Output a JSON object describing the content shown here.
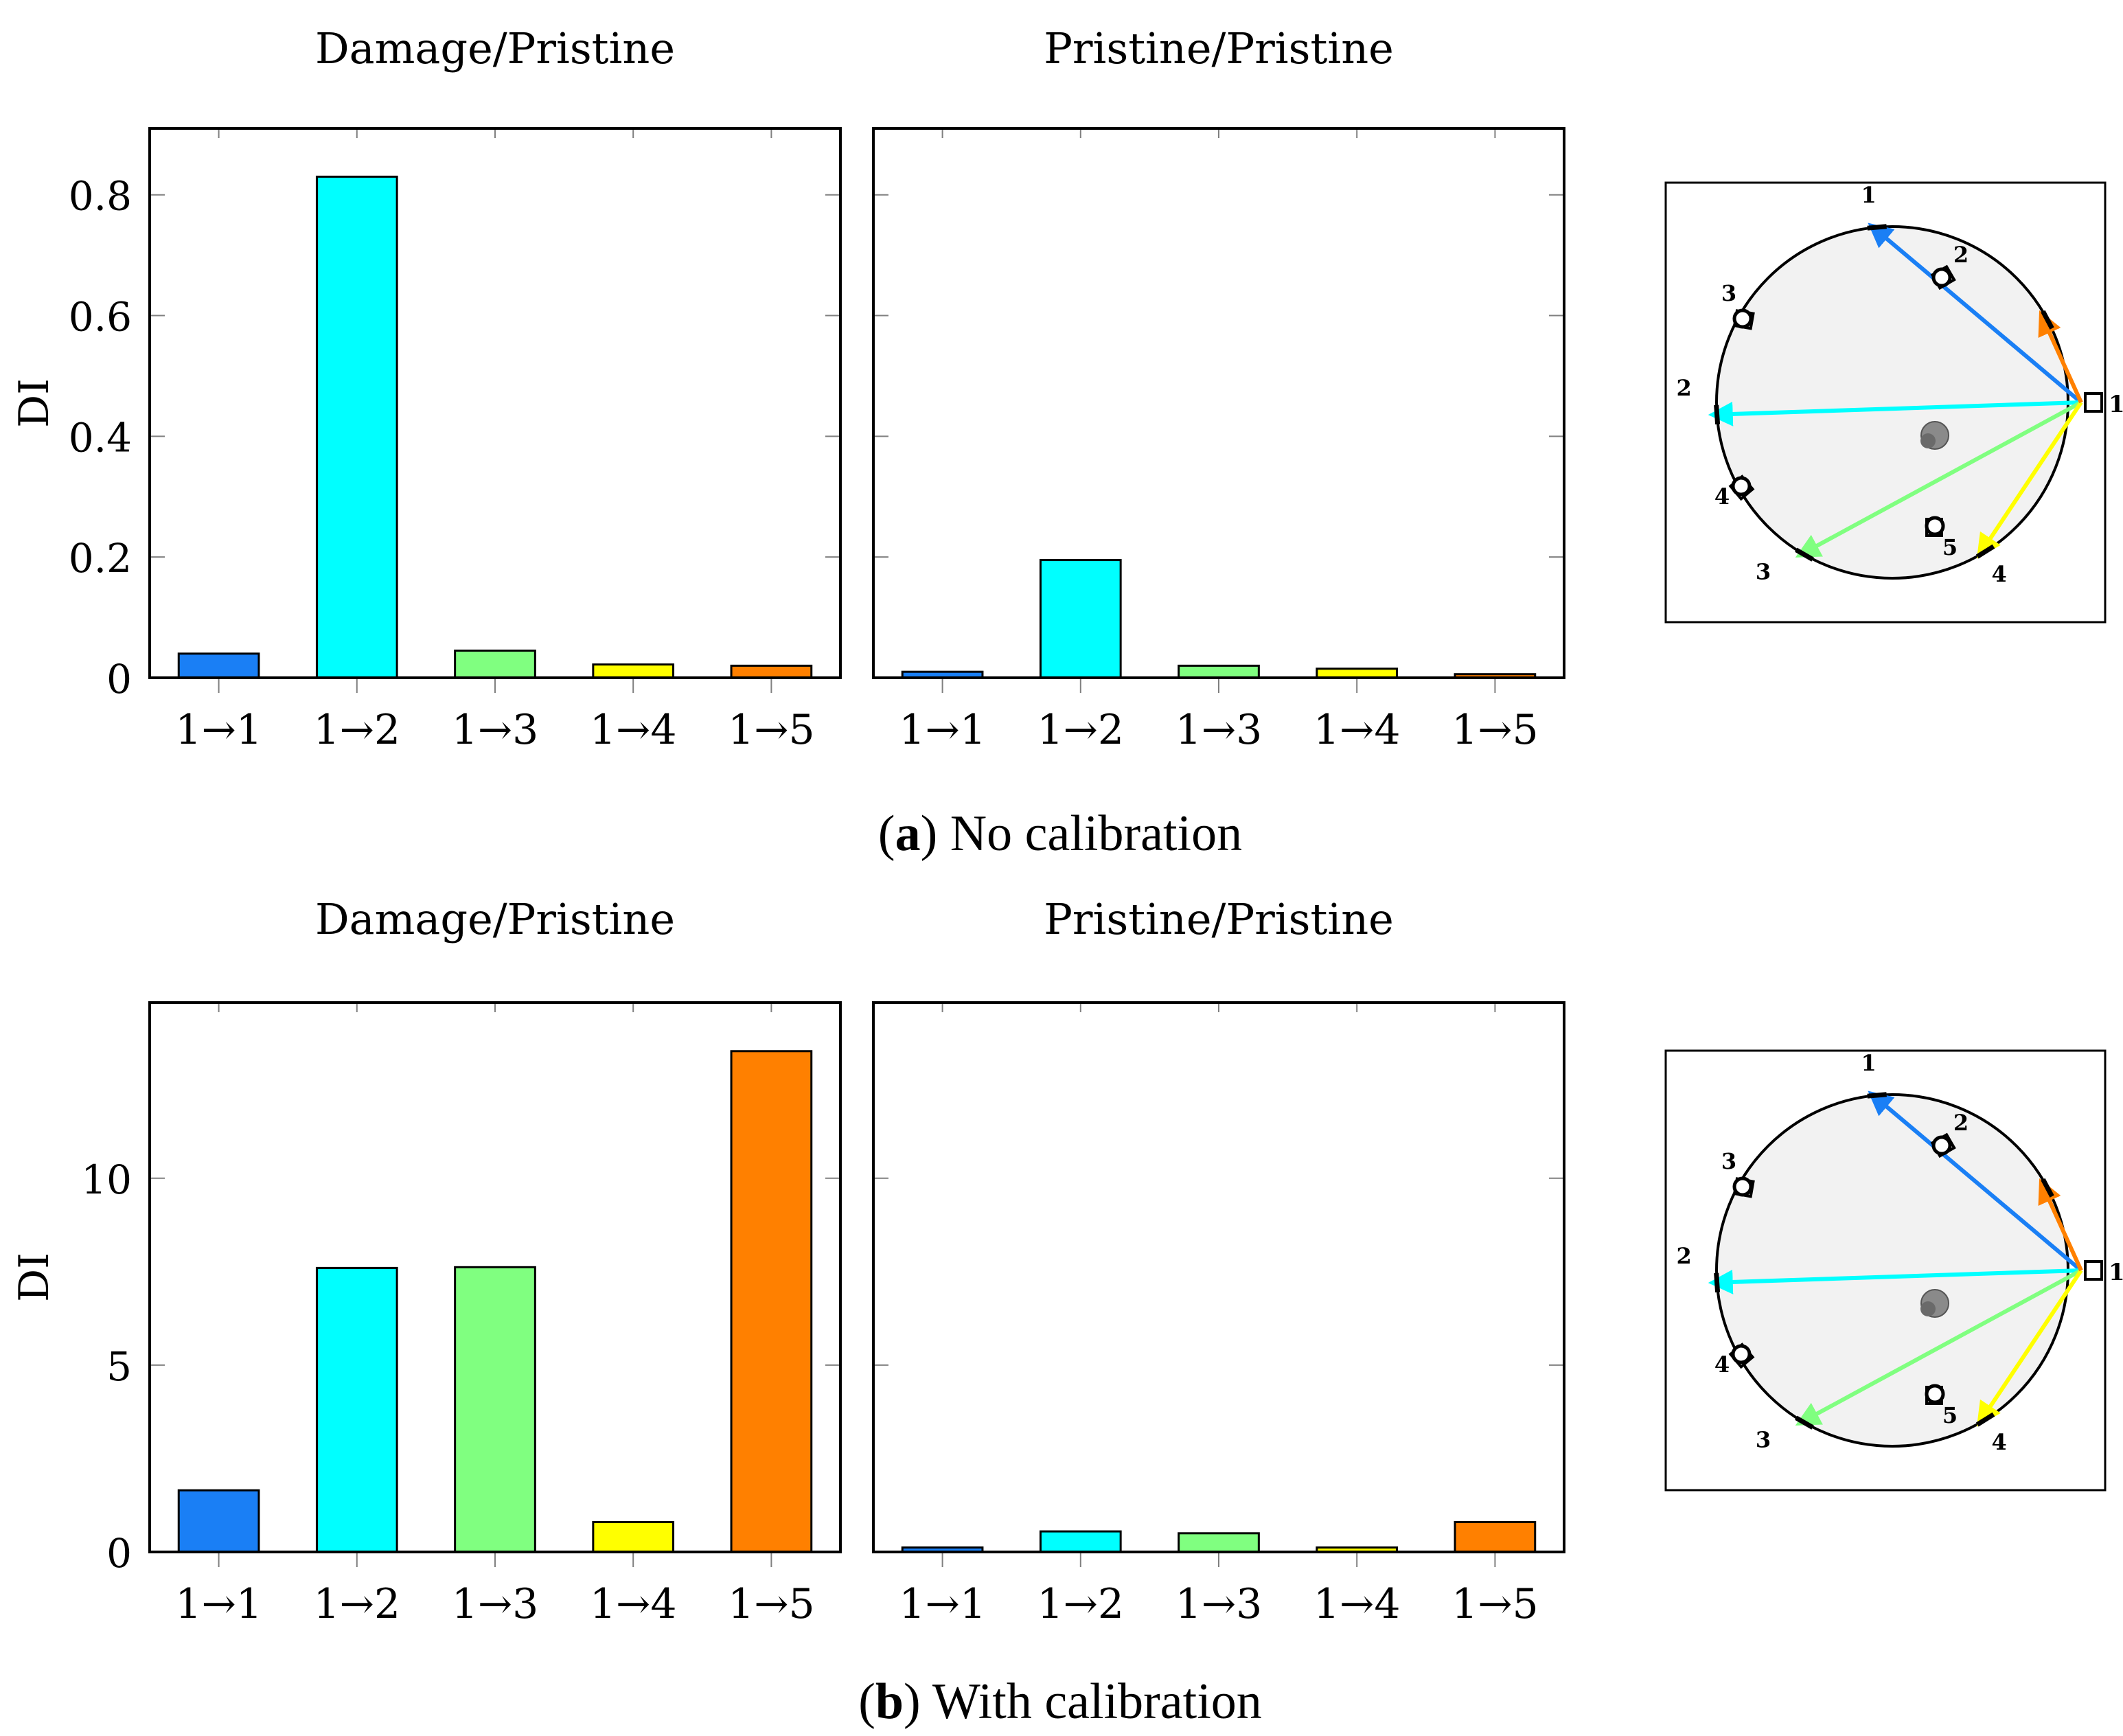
{
  "colors": {
    "s1": "#1a7ff5",
    "s2": "#00ffff",
    "s3": "#80ff80",
    "s4": "#ffff00",
    "s5": "#ff8000",
    "axis": "#000000",
    "tick": "#808080",
    "diagram_fill": "#f2f2f2"
  },
  "chart_data": [
    {
      "type": "bar",
      "id": "a-left",
      "title": "Damage/Pristine",
      "xlabel": "",
      "ylabel": "DI",
      "categories": [
        "1→1",
        "1→2",
        "1→3",
        "1→4",
        "1→5"
      ],
      "values": [
        0.04,
        0.83,
        0.045,
        0.022,
        0.02
      ],
      "ylim": [
        0,
        0.91
      ],
      "yticks": [
        0,
        0.2,
        0.4,
        0.6,
        0.8
      ],
      "ytick_labels": [
        "0",
        "0.2",
        "0.4",
        "0.6",
        "0.8"
      ],
      "grid": false
    },
    {
      "type": "bar",
      "id": "a-right",
      "title": "Pristine/Pristine",
      "xlabel": "",
      "ylabel": "",
      "categories": [
        "1→1",
        "1→2",
        "1→3",
        "1→4",
        "1→5"
      ],
      "values": [
        0.01,
        0.195,
        0.02,
        0.015,
        0.006
      ],
      "ylim": [
        0,
        0.91
      ],
      "yticks": [
        0,
        0.2,
        0.4,
        0.6,
        0.8
      ],
      "ytick_labels": [],
      "grid": false
    },
    {
      "type": "bar",
      "id": "b-left",
      "title": "Damage/Pristine",
      "xlabel": "",
      "ylabel": "DI",
      "categories": [
        "1→1",
        "1→2",
        "1→3",
        "1→4",
        "1→5"
      ],
      "values": [
        1.65,
        7.6,
        7.62,
        0.8,
        13.4
      ],
      "ylim": [
        0,
        14.7
      ],
      "yticks": [
        0,
        5,
        10
      ],
      "ytick_labels": [
        "0",
        "5",
        "10"
      ],
      "grid": false
    },
    {
      "type": "bar",
      "id": "b-right",
      "title": "Pristine/Pristine",
      "xlabel": "",
      "ylabel": "",
      "categories": [
        "1→1",
        "1→2",
        "1→3",
        "1→4",
        "1→5"
      ],
      "values": [
        0.12,
        0.55,
        0.5,
        0.12,
        0.8
      ],
      "ylim": [
        0,
        14.7
      ],
      "yticks": [
        0,
        5,
        10
      ],
      "ytick_labels": [],
      "grid": false
    }
  ],
  "captions": {
    "a": {
      "letter": "a",
      "text": " No calibration"
    },
    "b": {
      "letter": "b",
      "text": " With calibration"
    }
  },
  "diagram": {
    "source_label": "1",
    "receiver_labels": [
      "1",
      "2",
      "3",
      "4",
      "5"
    ],
    "transducer_labels": [
      "1",
      "2",
      "3",
      "4",
      "5"
    ]
  }
}
